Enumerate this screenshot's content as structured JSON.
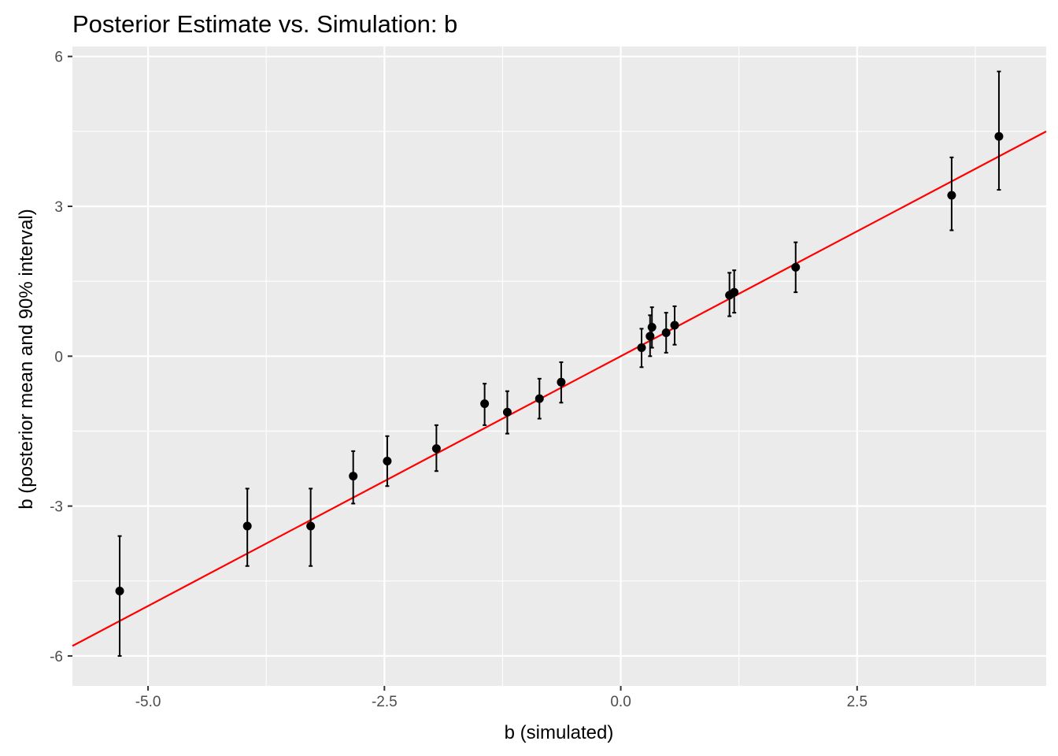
{
  "chart_data": {
    "type": "scatter",
    "title": "Posterior Estimate vs. Simulation:  b",
    "xlabel": "b (simulated)",
    "ylabel": "b (posterior mean and 90% interval)",
    "xlim": [
      -5.8,
      4.5
    ],
    "ylim": [
      -6.6,
      6.2
    ],
    "x_ticks": [
      -5.0,
      -2.5,
      0.0,
      2.5
    ],
    "x_tick_labels": [
      "-5.0",
      "-2.5",
      "0.0",
      "2.5"
    ],
    "x_minor": [
      -3.75,
      -1.25,
      1.25,
      3.75
    ],
    "y_ticks": [
      -6,
      -3,
      0,
      3,
      6
    ],
    "y_tick_labels": [
      "-6",
      "-3",
      "0",
      "3",
      "6"
    ],
    "y_minor": [
      -4.5,
      -1.5,
      1.5,
      4.5
    ],
    "grid": true,
    "reference_line": {
      "slope": 1,
      "intercept": 0,
      "color": "#ff0000"
    },
    "points": [
      {
        "x": -5.3,
        "y": -4.7,
        "lo": -6.0,
        "hi": -3.6
      },
      {
        "x": -3.95,
        "y": -3.4,
        "lo": -4.2,
        "hi": -2.65
      },
      {
        "x": -3.28,
        "y": -3.4,
        "lo": -4.2,
        "hi": -2.65
      },
      {
        "x": -2.83,
        "y": -2.4,
        "lo": -2.95,
        "hi": -1.9
      },
      {
        "x": -2.47,
        "y": -2.1,
        "lo": -2.6,
        "hi": -1.6
      },
      {
        "x": -1.95,
        "y": -1.85,
        "lo": -2.3,
        "hi": -1.38
      },
      {
        "x": -1.44,
        "y": -0.95,
        "lo": -1.38,
        "hi": -0.55
      },
      {
        "x": -1.2,
        "y": -1.12,
        "lo": -1.55,
        "hi": -0.7
      },
      {
        "x": -0.86,
        "y": -0.85,
        "lo": -1.25,
        "hi": -0.45
      },
      {
        "x": -0.63,
        "y": -0.52,
        "lo": -0.93,
        "hi": -0.12
      },
      {
        "x": 0.22,
        "y": 0.17,
        "lo": -0.22,
        "hi": 0.55
      },
      {
        "x": 0.31,
        "y": 0.4,
        "lo": 0.0,
        "hi": 0.82
      },
      {
        "x": 0.33,
        "y": 0.58,
        "lo": 0.17,
        "hi": 0.98
      },
      {
        "x": 0.48,
        "y": 0.47,
        "lo": 0.07,
        "hi": 0.87
      },
      {
        "x": 0.57,
        "y": 0.62,
        "lo": 0.23,
        "hi": 1.0
      },
      {
        "x": 1.15,
        "y": 1.22,
        "lo": 0.8,
        "hi": 1.67
      },
      {
        "x": 1.2,
        "y": 1.28,
        "lo": 0.87,
        "hi": 1.72
      },
      {
        "x": 1.85,
        "y": 1.78,
        "lo": 1.28,
        "hi": 2.28
      },
      {
        "x": 3.5,
        "y": 3.22,
        "lo": 2.52,
        "hi": 3.98
      },
      {
        "x": 4.0,
        "y": 4.4,
        "lo": 3.33,
        "hi": 5.7
      }
    ],
    "colors": {
      "panel": "#ebebeb",
      "grid": "#ffffff",
      "points": "#000000",
      "line": "#ff0000"
    }
  }
}
